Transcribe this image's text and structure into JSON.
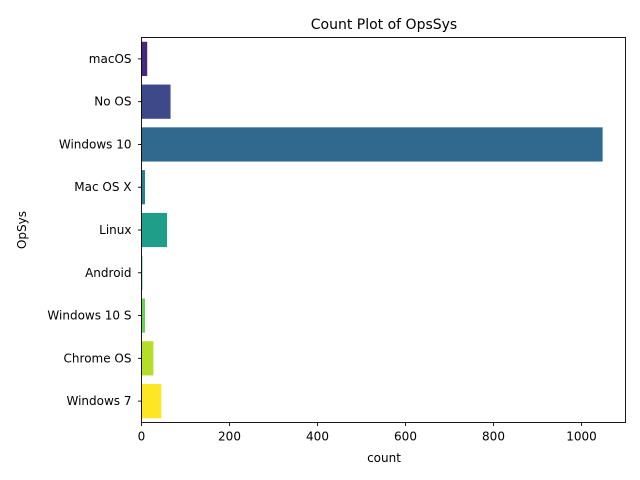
{
  "chart_data": {
    "type": "bar",
    "orientation": "horizontal",
    "title": "Count Plot of OpsSys",
    "xlabel": "count",
    "ylabel": "OpSys",
    "categories": [
      "macOS",
      "No OS",
      "Windows 10",
      "Mac OS X",
      "Linux",
      "Android",
      "Windows 10 S",
      "Chrome OS",
      "Windows 7"
    ],
    "values": [
      13,
      66,
      1048,
      8,
      58,
      2,
      8,
      27,
      45
    ],
    "colors": [
      "#482878",
      "#3e4989",
      "#31688e",
      "#26828e",
      "#1f9e89",
      "#35b779",
      "#6ece58",
      "#b5de2b",
      "#fde725"
    ],
    "xlim": [
      0,
      1100
    ],
    "xticks": [
      0,
      200,
      400,
      600,
      800,
      1000
    ],
    "grid": false,
    "legend": "none"
  }
}
